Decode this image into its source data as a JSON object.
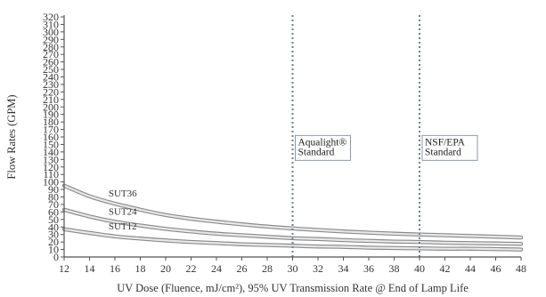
{
  "chart_data": {
    "type": "line",
    "xlabel": "UV Dose (Fluence, mJ/cm²), 95% UV Transmission Rate @ End of Lamp Life",
    "ylabel": "Flow Rates (GPM)",
    "xlim": [
      12,
      48
    ],
    "ylim": [
      0,
      320
    ],
    "x_ticks": [
      12,
      14,
      16,
      18,
      20,
      22,
      24,
      26,
      28,
      30,
      32,
      34,
      36,
      38,
      40,
      42,
      44,
      46,
      48
    ],
    "y_ticks": [
      0,
      10,
      20,
      30,
      40,
      50,
      60,
      70,
      80,
      90,
      100,
      110,
      120,
      130,
      140,
      150,
      160,
      170,
      180,
      190,
      200,
      210,
      220,
      230,
      240,
      250,
      260,
      270,
      280,
      290,
      300,
      310,
      320
    ],
    "grid": false,
    "legend": "none",
    "x": [
      12,
      14,
      16,
      18,
      20,
      22,
      24,
      26,
      28,
      30,
      32,
      34,
      36,
      38,
      40,
      42,
      44,
      46,
      48
    ],
    "series": [
      {
        "name": "SUT36",
        "values": [
          95,
          81,
          71,
          63,
          56,
          51,
          47,
          43.5,
          40.5,
          38,
          36,
          34,
          32.5,
          31,
          30,
          29,
          28,
          27,
          26
        ]
      },
      {
        "name": "SUT24",
        "values": [
          63,
          54,
          47,
          42,
          37.5,
          34,
          31,
          29,
          27,
          25,
          24,
          22.5,
          21.5,
          20.5,
          20,
          19,
          18.5,
          18,
          17.5
        ]
      },
      {
        "name": "SUT12",
        "values": [
          37,
          32,
          27.5,
          24.5,
          22,
          20,
          18.5,
          17,
          16,
          15,
          14,
          13.5,
          12.5,
          12,
          11.5,
          11,
          11,
          10.5,
          10
        ]
      }
    ],
    "reference_lines": [
      {
        "x": 30,
        "label_lines": [
          "Aqualight®",
          "Standard"
        ]
      },
      {
        "x": 40,
        "label_lines": [
          "NSF/EPA",
          "Standard"
        ]
      }
    ]
  },
  "style": {
    "axis_color": "#555555",
    "curve_outer_color": "#8a8a8a",
    "curve_inner_color": "#e8e8e8",
    "ref_line_color": "#6f7f8f",
    "ref_box_border": "#8a98a8",
    "text_color": "#333333"
  }
}
